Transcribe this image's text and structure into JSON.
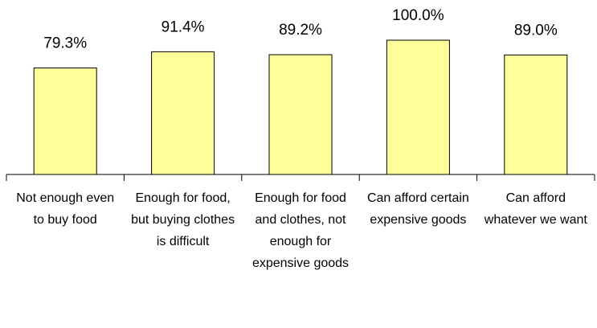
{
  "chart_data": {
    "type": "bar",
    "categories": [
      "Not enough even to buy food",
      "Enough for food, but buying clothes is difficult",
      "Enough for food and clothes, not enough for expensive goods",
      "Can afford certain expensive goods",
      "Can afford whatever we want"
    ],
    "values": [
      79.3,
      91.4,
      89.2,
      100.0,
      89.0
    ],
    "value_labels": [
      "79.3%",
      "91.4%",
      "89.2%",
      "100.0%",
      "89.0%"
    ],
    "color": "#ffff99"
  }
}
